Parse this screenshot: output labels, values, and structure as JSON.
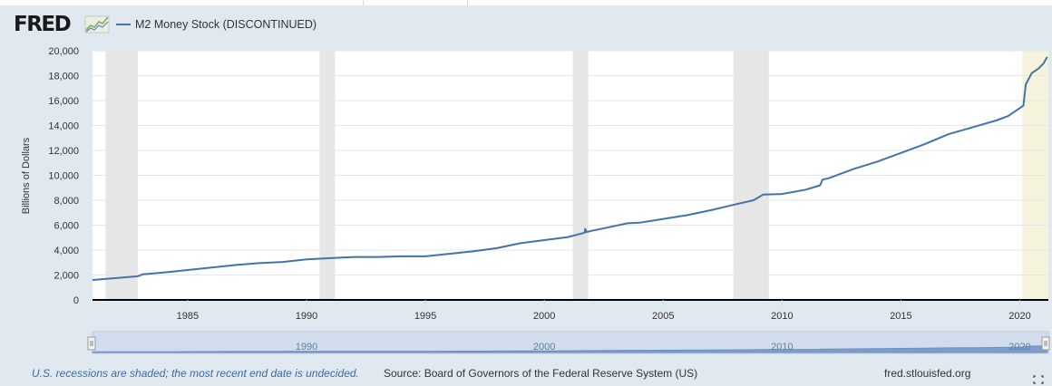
{
  "header": {
    "logo_text": "FRED",
    "legend_label": "M2 Money Stock (DISCONTINUED)"
  },
  "colors": {
    "series": "#4572a7",
    "recession": "#e6e6e6",
    "current_recession": "#f5f3dc",
    "background": "#e1e9f0"
  },
  "chart_data": {
    "type": "line",
    "title": "",
    "xlabel": "",
    "ylabel": "Billions of Dollars",
    "xlim": [
      1981.0,
      2021.2
    ],
    "ylim": [
      0,
      20000
    ],
    "yticks": [
      0,
      2000,
      4000,
      6000,
      8000,
      10000,
      12000,
      14000,
      16000,
      18000,
      20000
    ],
    "ytick_labels": [
      "0",
      "2,000",
      "4,000",
      "6,000",
      "8,000",
      "10,000",
      "12,000",
      "14,000",
      "16,000",
      "18,000",
      "20,000"
    ],
    "xticks": [
      1985,
      1990,
      1995,
      2000,
      2005,
      2010,
      2015,
      2020
    ],
    "xtick_labels": [
      "1985",
      "1990",
      "1995",
      "2000",
      "2005",
      "2010",
      "2015",
      "2020"
    ],
    "grid": true,
    "recessions": [
      [
        1981.55,
        1982.9
      ],
      [
        1990.55,
        1991.2
      ],
      [
        2001.2,
        2001.85
      ],
      [
        2007.95,
        2009.45
      ]
    ],
    "current_recession_start": 2020.1,
    "series": [
      {
        "name": "M2 Money Stock (DISCONTINUED)",
        "x": [
          1981.0,
          1982.0,
          1982.9,
          1983.1,
          1984.0,
          1985.0,
          1986.0,
          1987.0,
          1988.0,
          1989.0,
          1990.0,
          1991.0,
          1992.0,
          1993.0,
          1994.0,
          1995.0,
          1996.0,
          1997.0,
          1998.0,
          1999.0,
          2000.0,
          2001.0,
          2001.7,
          2001.72,
          2001.78,
          2002.0,
          2003.0,
          2003.5,
          2004.0,
          2005.0,
          2006.0,
          2007.0,
          2008.0,
          2008.8,
          2009.2,
          2010.0,
          2011.0,
          2011.6,
          2011.7,
          2012.0,
          2013.0,
          2014.0,
          2015.0,
          2016.0,
          2017.0,
          2018.0,
          2019.0,
          2019.5,
          2020.0,
          2020.15,
          2020.25,
          2020.5,
          2020.8,
          2021.0,
          2021.15
        ],
        "y": [
          1600,
          1750,
          1900,
          2050,
          2200,
          2400,
          2600,
          2800,
          2950,
          3050,
          3250,
          3350,
          3450,
          3450,
          3500,
          3500,
          3700,
          3900,
          4150,
          4550,
          4800,
          5050,
          5400,
          5700,
          5450,
          5550,
          5950,
          6150,
          6200,
          6500,
          6800,
          7200,
          7650,
          8000,
          8450,
          8500,
          8850,
          9200,
          9650,
          9800,
          10500,
          11100,
          11800,
          12500,
          13300,
          13850,
          14400,
          14750,
          15400,
          15600,
          17300,
          18200,
          18600,
          19000,
          19500
        ]
      }
    ]
  },
  "navigator": {
    "labels": [
      "1990",
      "2000",
      "2010",
      "2020"
    ]
  },
  "footer": {
    "note": "U.S. recessions are shaded; the most recent end date is undecided.",
    "source": "Source: Board of Governors of the Federal Reserve System (US)",
    "site": "fred.stlouisfed.org"
  }
}
